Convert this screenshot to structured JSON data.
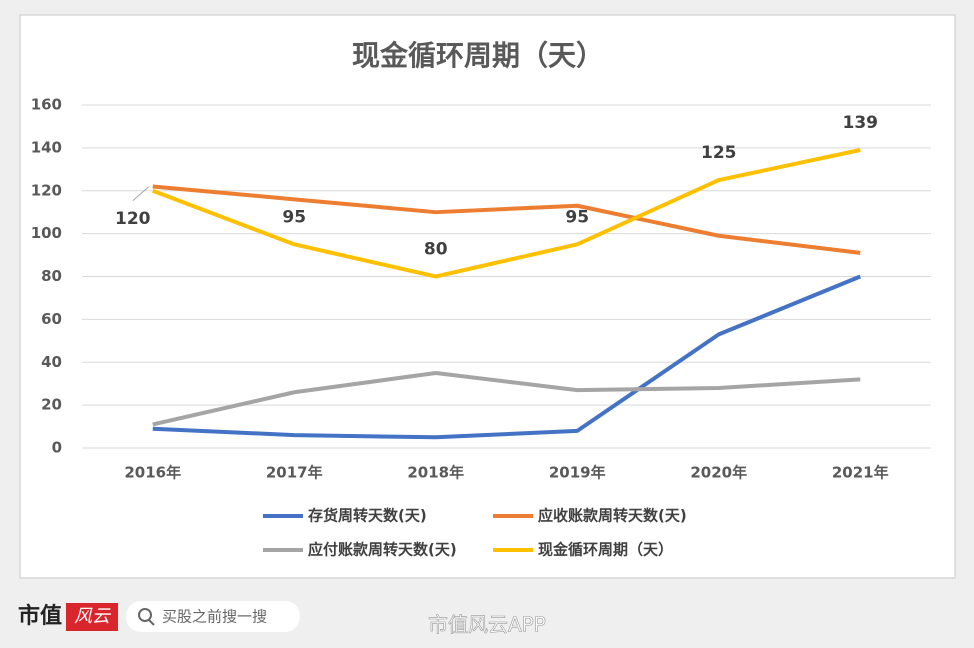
{
  "chart_data": {
    "type": "line",
    "title": "现金循环周期（天）",
    "categories": [
      "2016年",
      "2017年",
      "2018年",
      "2019年",
      "2020年",
      "2021年"
    ],
    "series": [
      {
        "name": "存货周转天数(天)",
        "color": "#4472c4",
        "values": [
          9,
          6,
          5,
          8,
          53,
          80
        ]
      },
      {
        "name": "应收账款周转天数(天)",
        "color": "#ed7d31",
        "values": [
          122,
          116,
          110,
          113,
          99,
          91
        ]
      },
      {
        "name": "应付账款周转天数(天)",
        "color": "#a5a5a5",
        "values": [
          11,
          26,
          35,
          27,
          28,
          32
        ]
      },
      {
        "name": "现金循环周期（天）",
        "color": "#ffc000",
        "values": [
          120,
          95,
          80,
          95,
          125,
          139
        ],
        "data_labels": true
      }
    ],
    "ylim": [
      0,
      160
    ],
    "yticks": [
      0,
      20,
      40,
      60,
      80,
      100,
      120,
      140,
      160
    ],
    "grid": true,
    "legend": "bottom"
  },
  "footer": {
    "brand": "市值",
    "logo": "风云",
    "search": "买股之前搜一搜",
    "app": "市值风云APP"
  }
}
